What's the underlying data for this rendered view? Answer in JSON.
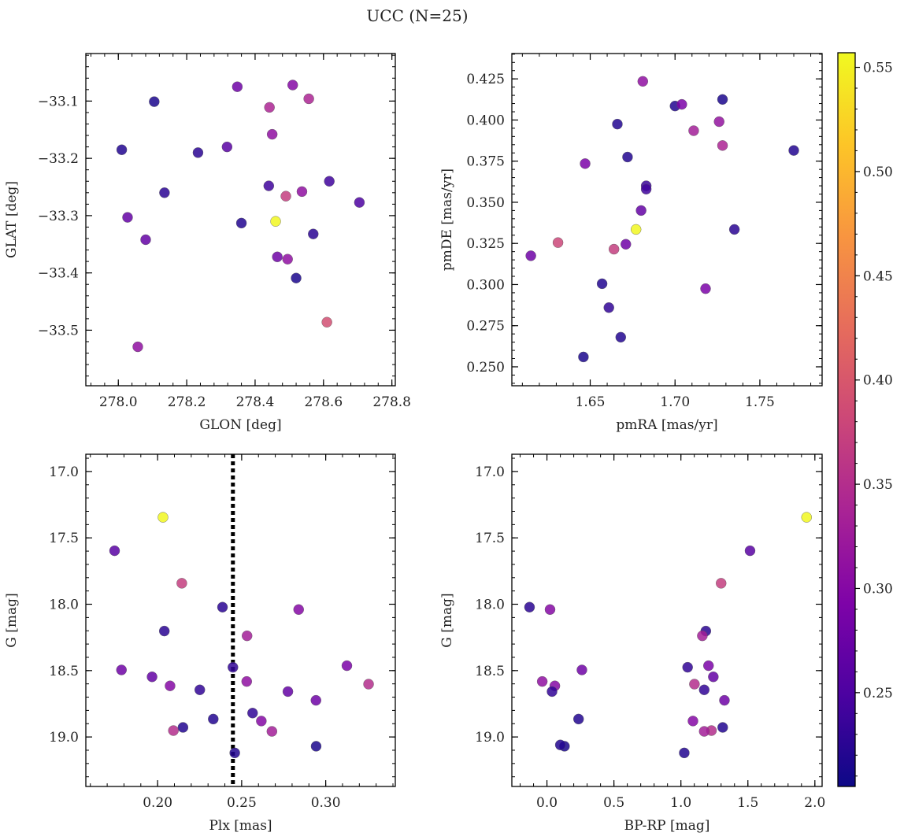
{
  "figure": {
    "title": "UCC (N=25)"
  },
  "colorbar": {
    "colormap": "plasma",
    "range": [
      0.205,
      0.557
    ],
    "ticks": [
      0.25,
      0.3,
      0.35,
      0.4,
      0.45,
      0.5,
      0.55
    ],
    "tick_labels": [
      "0.25",
      "0.30",
      "0.35",
      "0.40",
      "0.45",
      "0.50",
      "0.55"
    ]
  },
  "chart_data": [
    {
      "type": "scatter",
      "id": "glon-glat",
      "xlabel": "GLON [deg]",
      "ylabel": "GLAT [deg]",
      "xlim": [
        277.905,
        278.81
      ],
      "ylim": [
        -33.597,
        -33.017
      ],
      "xticks": [
        278.0,
        278.2,
        278.4,
        278.6,
        278.8
      ],
      "xtick_labels": [
        "278.0",
        "278.2",
        "278.4",
        "278.6",
        "278.8"
      ],
      "yticks": [
        -33.1,
        -33.2,
        -33.3,
        -33.4,
        -33.5
      ],
      "ytick_labels": [
        "−33.1",
        "−33.2",
        "−33.3",
        "−33.4",
        "−33.5"
      ],
      "x": [
        278.105,
        278.01,
        278.233,
        278.318,
        278.348,
        278.442,
        278.45,
        278.51,
        278.557,
        278.135,
        278.44,
        278.537,
        278.617,
        278.49,
        278.705,
        278.027,
        278.08,
        278.46,
        278.36,
        278.57,
        278.465,
        278.495,
        278.52,
        278.61,
        278.057
      ],
      "y": [
        -33.101,
        -33.185,
        -33.19,
        -33.18,
        -33.075,
        -33.111,
        -33.158,
        -33.072,
        -33.096,
        -33.26,
        -33.248,
        -33.258,
        -33.24,
        -33.266,
        -33.277,
        -33.303,
        -33.342,
        -33.31,
        -33.313,
        -33.332,
        -33.372,
        -33.376,
        -33.409,
        -33.486,
        -33.529
      ],
      "c": [
        0.215,
        0.22,
        0.225,
        0.26,
        0.28,
        0.34,
        0.31,
        0.3,
        0.34,
        0.225,
        0.24,
        0.31,
        0.24,
        0.37,
        0.25,
        0.27,
        0.27,
        0.555,
        0.22,
        0.225,
        0.28,
        0.31,
        0.215,
        0.39,
        0.31
      ]
    },
    {
      "type": "scatter",
      "id": "pmra-pmde",
      "xlabel": "pmRA [mas/yr]",
      "ylabel": "pmDE [mas/yr]",
      "xlim": [
        1.6038,
        1.7867
      ],
      "ylim": [
        0.2385,
        0.4404
      ],
      "xticks": [
        1.65,
        1.7,
        1.75
      ],
      "xtick_labels": [
        "1.65",
        "1.70",
        "1.75"
      ],
      "yticks": [
        0.25,
        0.275,
        0.3,
        0.325,
        0.35,
        0.375,
        0.4,
        0.425
      ],
      "ytick_labels": [
        "0.250",
        "0.275",
        "0.300",
        "0.325",
        "0.350",
        "0.375",
        "0.400",
        "0.425"
      ],
      "x": [
        1.681,
        1.7,
        1.704,
        1.728,
        1.666,
        1.711,
        1.726,
        1.728,
        1.77,
        1.672,
        1.647,
        1.683,
        1.683,
        1.68,
        1.677,
        1.735,
        1.631,
        1.664,
        1.671,
        1.615,
        1.657,
        1.661,
        1.718,
        1.668,
        1.646
      ],
      "y": [
        0.4235,
        0.4085,
        0.4095,
        0.4125,
        0.3975,
        0.3935,
        0.399,
        0.3845,
        0.3815,
        0.3775,
        0.3735,
        0.36,
        0.358,
        0.345,
        0.3335,
        0.3335,
        0.3255,
        0.3215,
        0.3245,
        0.3175,
        0.3005,
        0.286,
        0.2975,
        0.268,
        0.256
      ],
      "c": [
        0.31,
        0.22,
        0.29,
        0.215,
        0.22,
        0.33,
        0.315,
        0.34,
        0.22,
        0.22,
        0.29,
        0.235,
        0.24,
        0.27,
        0.555,
        0.225,
        0.38,
        0.37,
        0.28,
        0.28,
        0.22,
        0.23,
        0.29,
        0.22,
        0.215
      ]
    },
    {
      "type": "scatter",
      "id": "plx-g",
      "xlabel": "Plx [mas]",
      "ylabel": "G [mag]",
      "xlim": [
        0.1573,
        0.3414
      ],
      "ylim": [
        19.373,
        16.87
      ],
      "xticks": [
        0.2,
        0.25,
        0.3
      ],
      "xtick_labels": [
        "0.20",
        "0.25",
        "0.30"
      ],
      "yticks": [
        17.0,
        17.5,
        18.0,
        18.5,
        19.0
      ],
      "ytick_labels": [
        "17.0",
        "17.5",
        "18.0",
        "18.5",
        "19.0"
      ],
      "vline": 0.2448,
      "x": [
        0.2032,
        0.1744,
        0.2144,
        0.2386,
        0.2839,
        0.204,
        0.2532,
        0.1785,
        0.3126,
        0.2448,
        0.1967,
        0.253,
        0.2074,
        0.3255,
        0.2251,
        0.2775,
        0.2565,
        0.2942,
        0.2617,
        0.2331,
        0.2151,
        0.2094,
        0.268,
        0.2943,
        0.2459
      ],
      "y": [
        17.345,
        17.597,
        17.842,
        18.022,
        18.04,
        18.202,
        18.238,
        18.495,
        18.463,
        18.475,
        18.547,
        18.582,
        18.615,
        18.602,
        18.645,
        18.658,
        18.82,
        18.724,
        18.88,
        18.865,
        18.928,
        18.952,
        18.958,
        19.07,
        19.12
      ],
      "c": [
        0.555,
        0.26,
        0.37,
        0.225,
        0.3,
        0.225,
        0.33,
        0.28,
        0.29,
        0.23,
        0.27,
        0.31,
        0.3,
        0.35,
        0.23,
        0.27,
        0.23,
        0.28,
        0.3,
        0.22,
        0.22,
        0.35,
        0.33,
        0.215,
        0.22
      ]
    },
    {
      "type": "scatter",
      "id": "bprp-g",
      "xlabel": "BP-RP [mag]",
      "ylabel": "G [mag]",
      "xlim": [
        -0.262,
        2.054
      ],
      "ylim": [
        19.373,
        16.87
      ],
      "xticks": [
        0.0,
        0.5,
        1.0,
        1.5,
        2.0
      ],
      "xtick_labels": [
        "0.0",
        "0.5",
        "1.0",
        "1.5",
        "2.0"
      ],
      "yticks": [
        17.0,
        17.5,
        18.0,
        18.5,
        19.0
      ],
      "ytick_labels": [
        "17.0",
        "17.5",
        "18.0",
        "18.5",
        "19.0"
      ],
      "x": [
        1.938,
        1.516,
        1.3,
        -0.13,
        0.023,
        1.186,
        1.16,
        0.261,
        1.206,
        1.05,
        1.242,
        -0.035,
        0.059,
        1.101,
        0.038,
        1.174,
        1.325,
        1.09,
        0.236,
        1.312,
        1.228,
        1.174,
        0.131,
        1.025,
        0.1
      ],
      "y": [
        17.345,
        17.597,
        17.842,
        18.022,
        18.04,
        18.202,
        18.238,
        18.495,
        18.463,
        18.475,
        18.547,
        18.582,
        18.615,
        18.602,
        18.658,
        18.645,
        18.724,
        18.88,
        18.865,
        18.928,
        18.952,
        18.958,
        19.07,
        19.12,
        19.06
      ],
      "c": [
        0.555,
        0.26,
        0.37,
        0.225,
        0.3,
        0.225,
        0.33,
        0.28,
        0.29,
        0.23,
        0.27,
        0.31,
        0.3,
        0.35,
        0.23,
        0.23,
        0.28,
        0.3,
        0.22,
        0.22,
        0.35,
        0.33,
        0.215,
        0.22,
        0.22
      ]
    }
  ]
}
